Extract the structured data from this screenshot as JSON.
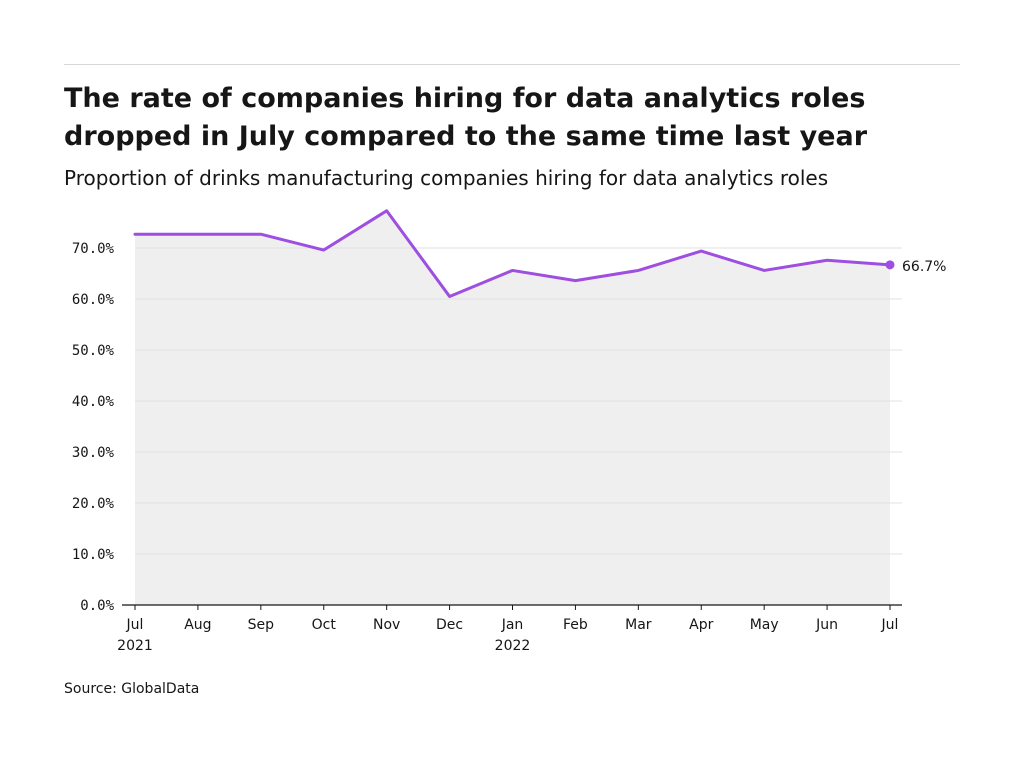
{
  "title": "The rate of companies hiring for data analytics roles dropped in July compared to the same time last year",
  "subtitle": "Proportion of drinks manufacturing companies hiring for data analytics roles",
  "source": "Source: GlobalData",
  "chart_data": {
    "type": "area",
    "categories": [
      "Jul",
      "Aug",
      "Sep",
      "Oct",
      "Nov",
      "Dec",
      "Jan",
      "Feb",
      "Mar",
      "Apr",
      "May",
      "Jun",
      "Jul"
    ],
    "year_labels": [
      "2021",
      "",
      "",
      "",
      "",
      "",
      "2022",
      "",
      "",
      "",
      "",
      "",
      ""
    ],
    "series": [
      {
        "values": [
          72.7,
          72.7,
          72.7,
          69.6,
          77.3,
          60.5,
          65.6,
          63.6,
          65.6,
          69.4,
          65.6,
          67.6,
          66.7
        ]
      }
    ],
    "ylim": [
      0,
      70
    ],
    "yticks": [
      0,
      10,
      20,
      30,
      40,
      50,
      60,
      70
    ],
    "ytick_labels": [
      "0.0%",
      "10.0%",
      "20.0%",
      "30.0%",
      "40.0%",
      "50.0%",
      "60.0%",
      "70.0%"
    ],
    "end_label": "66.7%",
    "grid": true,
    "colors": {
      "line": "#9e4ee0",
      "fill": "#efefef",
      "grid": "#e2e2e2",
      "axis": "#161616"
    }
  }
}
